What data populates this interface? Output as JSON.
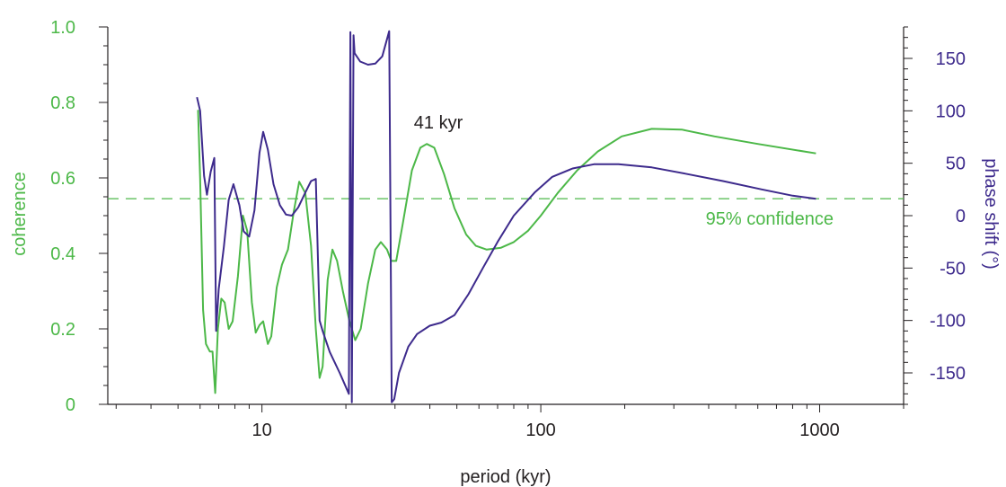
{
  "chart_data": {
    "type": "line",
    "xlabel": "period (kyr)",
    "x_scale": "log",
    "xlim": [
      2.8,
      2000
    ],
    "x_ticks": [
      {
        "value": 10,
        "label": "10"
      },
      {
        "value": 100,
        "label": "100"
      },
      {
        "value": 1000,
        "label": "1000"
      }
    ],
    "left_axis": {
      "label": "coherence",
      "ylim": [
        0,
        1
      ],
      "ticks": [
        {
          "value": 0,
          "label": "0"
        },
        {
          "value": 0.2,
          "label": "0.2"
        },
        {
          "value": 0.4,
          "label": "0.4"
        },
        {
          "value": 0.6,
          "label": "0.6"
        },
        {
          "value": 0.8,
          "label": "0.8"
        },
        {
          "value": 1.0,
          "label": "1.0"
        }
      ],
      "color": "#4cb848"
    },
    "right_axis": {
      "label": "phase shift (°)",
      "ylim": [
        -180,
        180
      ],
      "ticks": [
        {
          "value": 150,
          "label": "150"
        },
        {
          "value": 100,
          "label": "100"
        },
        {
          "value": 50,
          "label": "50"
        },
        {
          "value": 0,
          "label": "0"
        },
        {
          "value": -50,
          "label": "-50"
        },
        {
          "value": -100,
          "label": "-100"
        },
        {
          "value": -150,
          "label": "-150"
        }
      ],
      "color": "#3d2a8c"
    },
    "grid": false,
    "reference_line": {
      "axis": "left",
      "value": 0.545,
      "label": "95% confidence",
      "style": "dashed"
    },
    "annotations": [
      {
        "text": "41 kyr",
        "x": 41,
        "y": 0.84
      }
    ],
    "series": [
      {
        "axis": "left",
        "color": "#4cb848",
        "points": [
          [
            5.9,
            0.78
          ],
          [
            6.0,
            0.6
          ],
          [
            6.15,
            0.25
          ],
          [
            6.3,
            0.16
          ],
          [
            6.5,
            0.14
          ],
          [
            6.65,
            0.14
          ],
          [
            6.8,
            0.03
          ],
          [
            6.95,
            0.2
          ],
          [
            7.15,
            0.28
          ],
          [
            7.35,
            0.27
          ],
          [
            7.6,
            0.2
          ],
          [
            7.85,
            0.22
          ],
          [
            8.2,
            0.34
          ],
          [
            8.55,
            0.5
          ],
          [
            8.85,
            0.46
          ],
          [
            9.2,
            0.27
          ],
          [
            9.5,
            0.19
          ],
          [
            9.8,
            0.21
          ],
          [
            10.1,
            0.22
          ],
          [
            10.5,
            0.16
          ],
          [
            10.8,
            0.18
          ],
          [
            11.3,
            0.31
          ],
          [
            11.8,
            0.37
          ],
          [
            12.4,
            0.41
          ],
          [
            13.0,
            0.51
          ],
          [
            13.6,
            0.59
          ],
          [
            14.3,
            0.56
          ],
          [
            15.0,
            0.42
          ],
          [
            15.6,
            0.2
          ],
          [
            16.1,
            0.07
          ],
          [
            16.5,
            0.1
          ],
          [
            17.2,
            0.33
          ],
          [
            17.9,
            0.41
          ],
          [
            18.6,
            0.38
          ],
          [
            19.5,
            0.3
          ],
          [
            20.6,
            0.22
          ],
          [
            21.6,
            0.17
          ],
          [
            22.6,
            0.2
          ],
          [
            24.0,
            0.32
          ],
          [
            25.5,
            0.41
          ],
          [
            26.7,
            0.43
          ],
          [
            28.1,
            0.41
          ],
          [
            29.1,
            0.38
          ],
          [
            30.3,
            0.38
          ],
          [
            32.0,
            0.48
          ],
          [
            34.5,
            0.62
          ],
          [
            37.0,
            0.68
          ],
          [
            39.0,
            0.69
          ],
          [
            41.5,
            0.68
          ],
          [
            45.0,
            0.61
          ],
          [
            49.0,
            0.52
          ],
          [
            54.0,
            0.45
          ],
          [
            58.5,
            0.42
          ],
          [
            64.0,
            0.41
          ],
          [
            72.0,
            0.415
          ],
          [
            80.0,
            0.43
          ],
          [
            90.0,
            0.46
          ],
          [
            100.0,
            0.5
          ],
          [
            115.0,
            0.56
          ],
          [
            135.0,
            0.62
          ],
          [
            160.0,
            0.67
          ],
          [
            195.0,
            0.71
          ],
          [
            250.0,
            0.73
          ],
          [
            320.0,
            0.728
          ],
          [
            420.0,
            0.71
          ],
          [
            600.0,
            0.69
          ],
          [
            970.0,
            0.665
          ]
        ]
      },
      {
        "axis": "right",
        "color": "#3d2a8c",
        "points": [
          [
            5.85,
            113
          ],
          [
            6.0,
            100
          ],
          [
            6.2,
            38
          ],
          [
            6.35,
            20
          ],
          [
            6.55,
            42
          ],
          [
            6.75,
            55
          ],
          [
            6.85,
            -110
          ],
          [
            7.0,
            -70
          ],
          [
            7.3,
            -30
          ],
          [
            7.6,
            15
          ],
          [
            7.9,
            30
          ],
          [
            8.3,
            10
          ],
          [
            8.6,
            -15
          ],
          [
            9.0,
            -20
          ],
          [
            9.4,
            5
          ],
          [
            9.8,
            60
          ],
          [
            10.1,
            80
          ],
          [
            10.5,
            63
          ],
          [
            11.0,
            30
          ],
          [
            11.6,
            10
          ],
          [
            12.2,
            1
          ],
          [
            12.8,
            0
          ],
          [
            13.5,
            8
          ],
          [
            14.3,
            22
          ],
          [
            15.0,
            33
          ],
          [
            15.6,
            35
          ],
          [
            16.1,
            -100
          ],
          [
            16.5,
            -110
          ],
          [
            17.5,
            -130
          ],
          [
            19.0,
            -150
          ],
          [
            20.5,
            -170
          ],
          [
            20.75,
            175
          ],
          [
            21.0,
            -178
          ],
          [
            21.3,
            172
          ],
          [
            21.5,
            155
          ],
          [
            22.5,
            147
          ],
          [
            24.0,
            144
          ],
          [
            25.5,
            145
          ],
          [
            27.0,
            152
          ],
          [
            28.6,
            176
          ],
          [
            29.2,
            -178
          ],
          [
            29.8,
            -175
          ],
          [
            31.0,
            -150
          ],
          [
            33.5,
            -125
          ],
          [
            36.0,
            -113
          ],
          [
            40.0,
            -105
          ],
          [
            44.0,
            -102
          ],
          [
            49.0,
            -95
          ],
          [
            55.0,
            -75
          ],
          [
            62.0,
            -50
          ],
          [
            70.0,
            -25
          ],
          [
            80.0,
            0
          ],
          [
            95.0,
            22
          ],
          [
            110.0,
            37
          ],
          [
            130.0,
            45
          ],
          [
            155.0,
            49
          ],
          [
            190.0,
            49
          ],
          [
            250.0,
            46
          ],
          [
            330.0,
            40
          ],
          [
            450.0,
            33
          ],
          [
            620.0,
            25
          ],
          [
            800.0,
            19
          ],
          [
            970.0,
            16
          ]
        ]
      }
    ]
  }
}
